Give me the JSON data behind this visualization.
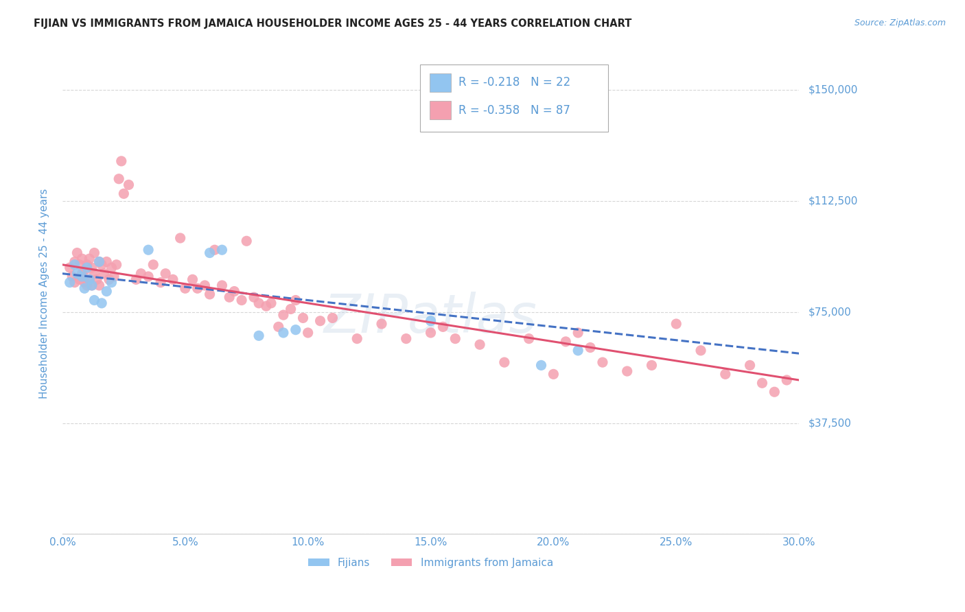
{
  "title": "FIJIAN VS IMMIGRANTS FROM JAMAICA HOUSEHOLDER INCOME AGES 25 - 44 YEARS CORRELATION CHART",
  "source": "Source: ZipAtlas.com",
  "ylabel": "Householder Income Ages 25 - 44 years",
  "xlim": [
    0.0,
    0.3
  ],
  "ylim": [
    0,
    162500
  ],
  "xtick_labels": [
    "0.0%",
    "5.0%",
    "10.0%",
    "15.0%",
    "20.0%",
    "25.0%",
    "30.0%"
  ],
  "xtick_vals": [
    0.0,
    0.05,
    0.1,
    0.15,
    0.2,
    0.25,
    0.3
  ],
  "ytick_vals": [
    0,
    37500,
    75000,
    112500,
    150000
  ],
  "ytick_labels": [
    "",
    "$37,500",
    "$75,000",
    "$112,500",
    "$150,000"
  ],
  "grid_color": "#cccccc",
  "background_color": "#ffffff",
  "fijian_color": "#92C5F0",
  "jamaica_color": "#F4A0B0",
  "fijian_line_color": "#4472C4",
  "jamaica_line_color": "#E05070",
  "title_color": "#333333",
  "axis_label_color": "#5B9BD5",
  "R_fijian": -0.218,
  "N_fijian": 22,
  "R_jamaica": -0.358,
  "N_jamaica": 87,
  "fijian_intercept": 88000,
  "fijian_slope": -90000,
  "jamaica_intercept": 91000,
  "jamaica_slope": -130000,
  "fijian_x": [
    0.003,
    0.005,
    0.006,
    0.008,
    0.009,
    0.01,
    0.011,
    0.012,
    0.013,
    0.015,
    0.016,
    0.018,
    0.02,
    0.035,
    0.06,
    0.065,
    0.08,
    0.09,
    0.095,
    0.15,
    0.195,
    0.21
  ],
  "fijian_y": [
    85000,
    91000,
    88000,
    87000,
    83000,
    90000,
    86000,
    84000,
    79000,
    92000,
    78000,
    82000,
    85000,
    96000,
    95000,
    96000,
    67000,
    68000,
    69000,
    72000,
    57000,
    62000
  ],
  "jamaica_x": [
    0.003,
    0.004,
    0.005,
    0.005,
    0.006,
    0.007,
    0.007,
    0.008,
    0.008,
    0.009,
    0.009,
    0.01,
    0.01,
    0.011,
    0.011,
    0.012,
    0.012,
    0.013,
    0.013,
    0.014,
    0.015,
    0.015,
    0.016,
    0.017,
    0.018,
    0.019,
    0.02,
    0.021,
    0.022,
    0.023,
    0.024,
    0.025,
    0.027,
    0.03,
    0.032,
    0.035,
    0.037,
    0.04,
    0.042,
    0.045,
    0.048,
    0.05,
    0.053,
    0.055,
    0.058,
    0.06,
    0.062,
    0.065,
    0.068,
    0.07,
    0.073,
    0.075,
    0.078,
    0.08,
    0.083,
    0.085,
    0.088,
    0.09,
    0.093,
    0.095,
    0.098,
    0.1,
    0.105,
    0.11,
    0.12,
    0.13,
    0.14,
    0.15,
    0.155,
    0.16,
    0.17,
    0.18,
    0.19,
    0.2,
    0.205,
    0.21,
    0.215,
    0.22,
    0.23,
    0.24,
    0.25,
    0.26,
    0.27,
    0.28,
    0.285,
    0.29,
    0.295
  ],
  "jamaica_y": [
    90000,
    87000,
    92000,
    85000,
    95000,
    91000,
    86000,
    93000,
    88000,
    89000,
    85000,
    91000,
    84000,
    93000,
    86000,
    90000,
    84000,
    88000,
    95000,
    86000,
    92000,
    84000,
    91000,
    88000,
    92000,
    86000,
    90000,
    87000,
    91000,
    120000,
    126000,
    115000,
    118000,
    86000,
    88000,
    87000,
    91000,
    85000,
    88000,
    86000,
    100000,
    83000,
    86000,
    83000,
    84000,
    81000,
    96000,
    84000,
    80000,
    82000,
    79000,
    99000,
    80000,
    78000,
    77000,
    78000,
    70000,
    74000,
    76000,
    79000,
    73000,
    68000,
    72000,
    73000,
    66000,
    71000,
    66000,
    68000,
    70000,
    66000,
    64000,
    58000,
    66000,
    54000,
    65000,
    68000,
    63000,
    58000,
    55000,
    57000,
    71000,
    62000,
    54000,
    57000,
    51000,
    48000,
    52000
  ]
}
